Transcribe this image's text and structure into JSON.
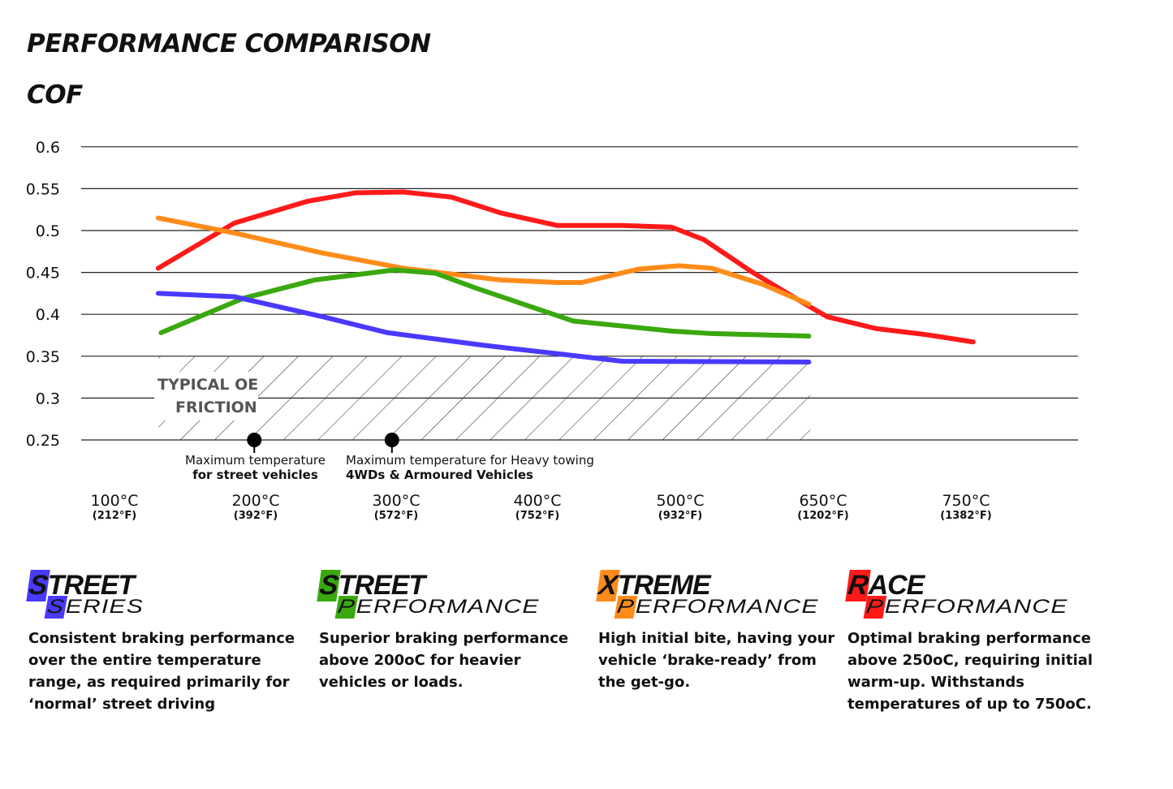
{
  "header": {
    "title": "PERFORMANCE COMPARISON",
    "subtitle": "COF"
  },
  "chart_data": {
    "type": "line",
    "title": "PERFORMANCE COMPARISON",
    "ylabel": "COF",
    "ylim": [
      0.25,
      0.6
    ],
    "yticks": [
      "0.6",
      "0.55",
      "0.5",
      "0.45",
      "0.4",
      "0.35",
      "0.3",
      "0.25"
    ],
    "xticks": [
      {
        "c": "100°C",
        "f": "(212°F)",
        "t": 100
      },
      {
        "c": "200°C",
        "f": "(392°F)",
        "t": 200
      },
      {
        "c": "300°C",
        "f": "(572°F)",
        "t": 300
      },
      {
        "c": "400°C",
        "f": "(752°F)",
        "t": 400
      },
      {
        "c": "500°C",
        "f": "(932°F)",
        "t": 500
      },
      {
        "c": "650°C",
        "f": "(1202°F)",
        "t": 650
      },
      {
        "c": "750°C",
        "f": "(1382°F)",
        "t": 750
      }
    ],
    "grid": true,
    "shaded_region": {
      "label_line1": "TYPICAL OE",
      "label_line2": "FRICTION",
      "cof_range": [
        0.25,
        0.35
      ],
      "temp_range": [
        130,
        635
      ]
    },
    "markers": [
      {
        "temp": 199,
        "line1": "Maximum temperature",
        "line2": "for street vehicles"
      },
      {
        "temp": 297,
        "line1": "Maximum temperature for Heavy towing",
        "line2": "4WDs & Armoured Vehicles"
      }
    ],
    "series": [
      {
        "color": "#ff1a1a",
        "x": [
          131,
          185,
          237,
          271,
          305,
          339,
          374,
          414,
          459,
          494,
          525,
          576,
          636,
          653,
          687,
          721,
          755
        ],
        "y": [
          0.455,
          0.509,
          0.535,
          0.545,
          0.546,
          0.54,
          0.521,
          0.506,
          0.506,
          0.504,
          0.489,
          0.45,
          0.409,
          0.397,
          0.383,
          0.376,
          0.367
        ]
      },
      {
        "color": "#ff8c1a",
        "x": [
          131,
          185,
          248,
          305,
          374,
          414,
          431,
          471,
          499,
          533,
          586,
          635
        ],
        "y": [
          0.515,
          0.497,
          0.473,
          0.455,
          0.441,
          0.438,
          0.438,
          0.454,
          0.458,
          0.455,
          0.436,
          0.412
        ]
      },
      {
        "color": "#3aa80f",
        "x": [
          133,
          191,
          242,
          299,
          328,
          357,
          425,
          494,
          533,
          635
        ],
        "y": [
          0.378,
          0.419,
          0.441,
          0.453,
          0.449,
          0.431,
          0.392,
          0.38,
          0.377,
          0.374
        ]
      },
      {
        "color": "#4a3aff",
        "x": [
          131,
          185,
          248,
          294,
          362,
          419,
          459,
          635
        ],
        "y": [
          0.425,
          0.421,
          0.397,
          0.378,
          0.363,
          0.352,
          0.344,
          0.343
        ]
      }
    ]
  },
  "brands": [
    {
      "first": "S",
      "rest": "TREET",
      "sub_first": "S",
      "sub_rest": "ERIES",
      "color": "#4a3aff",
      "desc": "Consistent braking performance over the entire temperature range, as required primarily for ‘normal’ street driving"
    },
    {
      "first": "S",
      "rest": "TREET",
      "sub_first": "P",
      "sub_rest": "ERFORMANCE",
      "color": "#3aa80f",
      "desc": "Superior braking performance above 200oC for heavier vehicles or loads."
    },
    {
      "first": "X",
      "rest": "TREME",
      "sub_first": "P",
      "sub_rest": "ERFORMANCE",
      "color": "#ff8c1a",
      "desc": "High initial bite, having your vehicle ‘brake-ready’ from the get-go."
    },
    {
      "first": "R",
      "rest": "ACE",
      "sub_first": "P",
      "sub_rest": "ERFORMANCE",
      "color": "#ff1a1a",
      "desc": "Optimal braking performance above 250oC, requiring initial warm-up. Withstands temperatures of up to 750oC."
    }
  ]
}
